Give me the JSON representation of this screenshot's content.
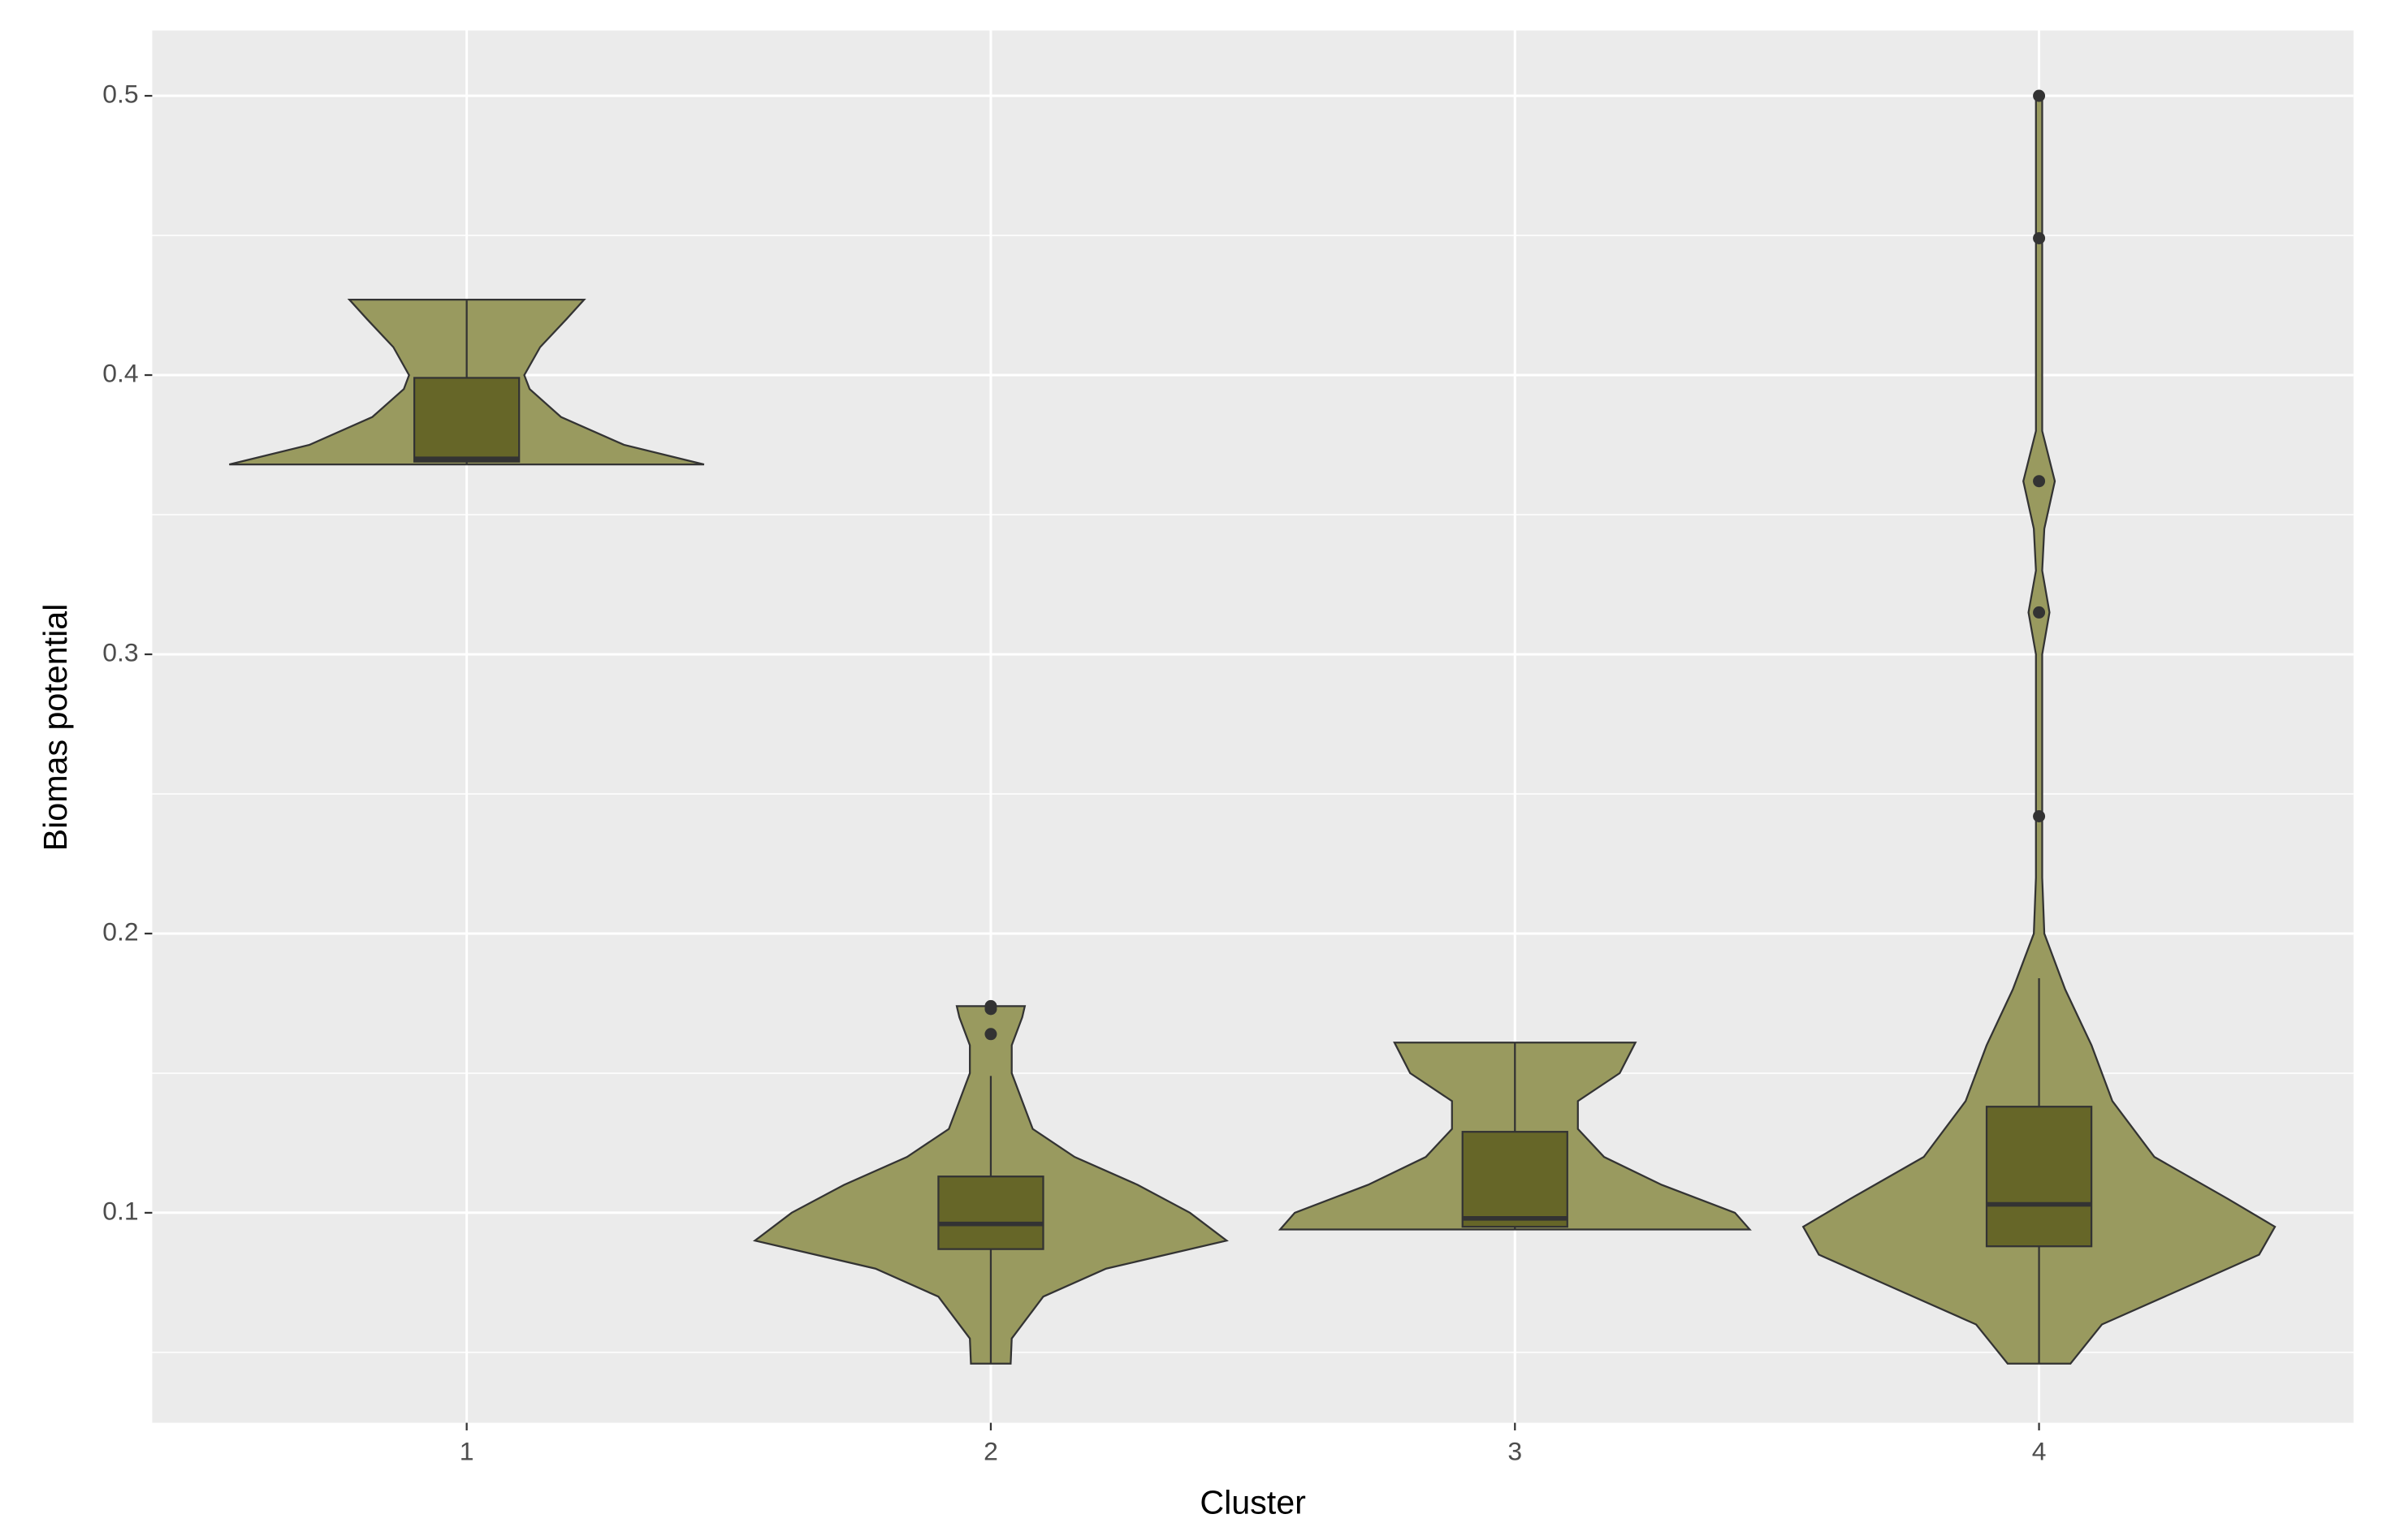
{
  "chart_data": {
    "type": "violin",
    "x_label": "Cluster",
    "y_label": "Biomas potential",
    "categories": [
      "1",
      "2",
      "3",
      "4"
    ],
    "xlim": [
      0.4,
      4.6
    ],
    "ylim": [
      0.0248,
      0.5234
    ],
    "yticks": [
      0.1,
      0.2,
      0.3,
      0.4,
      0.5
    ],
    "y_minor_gridlines": [
      0.05,
      0.15,
      0.25,
      0.35,
      0.45
    ],
    "grid": true,
    "violin_color": "#999a5f",
    "box_color": "#666628",
    "line_color": "#333333",
    "violins": [
      {
        "y": [
          0.368,
          0.375,
          0.385,
          0.395,
          0.4,
          0.41,
          0.42,
          0.427
        ],
        "halfwidth": [
          0.453,
          0.3,
          0.18,
          0.12,
          0.11,
          0.14,
          0.19,
          0.224
        ]
      },
      {
        "y": [
          0.046,
          0.055,
          0.07,
          0.08,
          0.09,
          0.1,
          0.11,
          0.12,
          0.13,
          0.14,
          0.15,
          0.16,
          0.17,
          0.174
        ],
        "halfwidth": [
          0.038,
          0.04,
          0.1,
          0.22,
          0.45,
          0.38,
          0.28,
          0.16,
          0.08,
          0.06,
          0.04,
          0.04,
          0.06,
          0.065
        ]
      },
      {
        "y": [
          0.094,
          0.1,
          0.11,
          0.12,
          0.13,
          0.14,
          0.15,
          0.161
        ],
        "halfwidth": [
          0.448,
          0.42,
          0.28,
          0.17,
          0.12,
          0.12,
          0.2,
          0.23
        ]
      },
      {
        "y": [
          0.046,
          0.06,
          0.075,
          0.085,
          0.095,
          0.105,
          0.12,
          0.14,
          0.16,
          0.18,
          0.2,
          0.22,
          0.3,
          0.315,
          0.33,
          0.345,
          0.362,
          0.38,
          0.5
        ],
        "halfwidth": [
          0.06,
          0.12,
          0.3,
          0.42,
          0.45,
          0.36,
          0.22,
          0.14,
          0.1,
          0.05,
          0.01,
          0.006,
          0.006,
          0.02,
          0.006,
          0.01,
          0.03,
          0.006,
          0.006
        ]
      }
    ],
    "boxes": [
      {
        "low": 0.368,
        "q1": 0.369,
        "median": 0.37,
        "q3": 0.399,
        "high": 0.427,
        "outliers": []
      },
      {
        "low": 0.046,
        "q1": 0.087,
        "median": 0.096,
        "q3": 0.113,
        "high": 0.149,
        "outliers": [
          0.164,
          0.173,
          0.174
        ]
      },
      {
        "low": 0.094,
        "q1": 0.095,
        "median": 0.098,
        "q3": 0.129,
        "high": 0.161,
        "outliers": []
      },
      {
        "low": 0.046,
        "q1": 0.088,
        "median": 0.103,
        "q3": 0.138,
        "high": 0.184,
        "outliers": [
          0.242,
          0.315,
          0.362,
          0.449,
          0.5
        ]
      }
    ]
  }
}
